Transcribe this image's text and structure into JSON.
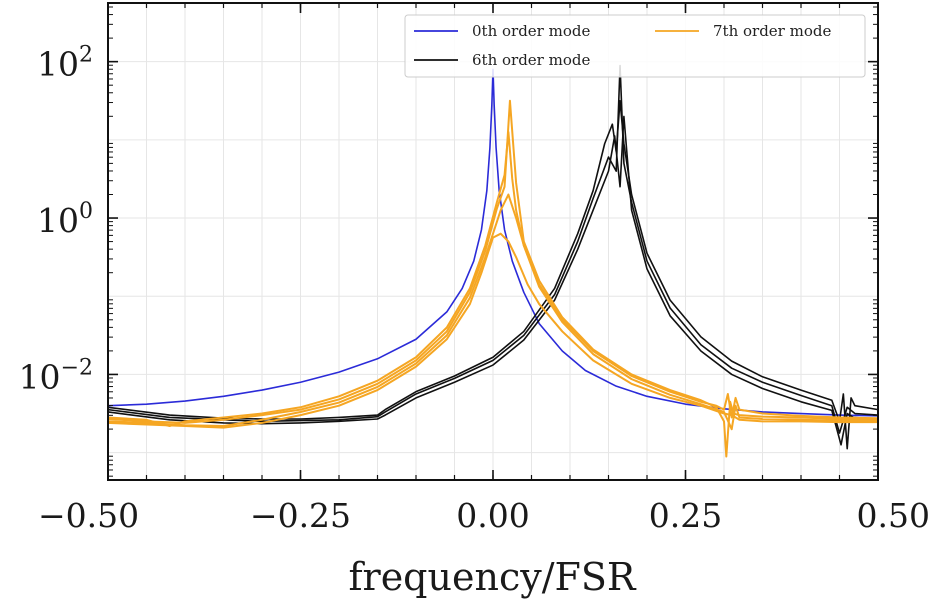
{
  "chart_data": {
    "type": "line",
    "title": "",
    "xlabel": "frequency/FSR",
    "ylabel": "",
    "xlim": [
      -0.5,
      0.5
    ],
    "ylim_log10": [
      -3.35,
      2.75
    ],
    "yscale": "log",
    "grid": true,
    "legend_placement": "top-right",
    "x_ticks": [
      {
        "value": -0.5,
        "label": "−0.50"
      },
      {
        "value": -0.25,
        "label": "−0.25"
      },
      {
        "value": 0.0,
        "label": "0.00"
      },
      {
        "value": 0.25,
        "label": "0.25"
      },
      {
        "value": 0.5,
        "label": "0.50"
      }
    ],
    "y_ticks": [
      {
        "exp": 2,
        "base": "10",
        "sup": "2"
      },
      {
        "exp": 0,
        "base": "10",
        "sup": "0"
      },
      {
        "exp": -2,
        "base": "10",
        "sup": "−2"
      }
    ],
    "series": [
      {
        "name": "0th order mode",
        "color": "#2b2bd8",
        "lines": [
          {
            "x": [
              -0.5,
              -0.45,
              -0.4,
              -0.35,
              -0.3,
              -0.25,
              -0.2,
              -0.15,
              -0.1,
              -0.06,
              -0.04,
              -0.025,
              -0.015,
              -0.008,
              -0.004,
              -0.0015,
              0.0,
              0.0015,
              0.004,
              0.008,
              0.015,
              0.025,
              0.04,
              0.06,
              0.09,
              0.12,
              0.16,
              0.2,
              0.25,
              0.3,
              0.35,
              0.4,
              0.45,
              0.5
            ],
            "y": [
              -2.4,
              -2.38,
              -2.34,
              -2.28,
              -2.2,
              -2.1,
              -1.97,
              -1.8,
              -1.55,
              -1.2,
              -0.9,
              -0.55,
              -0.15,
              0.35,
              0.9,
              1.45,
              1.9,
              1.45,
              0.9,
              0.35,
              -0.15,
              -0.55,
              -0.95,
              -1.35,
              -1.7,
              -1.95,
              -2.15,
              -2.28,
              -2.38,
              -2.44,
              -2.48,
              -2.5,
              -2.52,
              -2.53
            ]
          }
        ]
      },
      {
        "name": "6th order mode",
        "color": "#111111",
        "lines": [
          {
            "x": [
              -0.5,
              -0.42,
              -0.35,
              -0.3,
              -0.25,
              -0.2,
              -0.15,
              -0.14,
              -0.1,
              -0.05,
              0.0,
              0.04,
              0.08,
              0.11,
              0.13,
              0.145,
              0.155,
              0.16,
              0.165,
              0.17,
              0.18,
              0.2,
              0.23,
              0.27,
              0.31,
              0.35,
              0.4,
              0.44,
              0.45,
              0.455,
              0.46,
              0.465,
              0.47,
              0.5
            ],
            "y": [
              -2.42,
              -2.52,
              -2.56,
              -2.57,
              -2.57,
              -2.55,
              -2.52,
              -2.45,
              -2.22,
              -2.02,
              -1.78,
              -1.45,
              -0.9,
              -0.2,
              0.35,
              0.95,
              1.2,
              0.85,
              1.5,
              0.95,
              0.3,
              -0.45,
              -1.05,
              -1.52,
              -1.83,
              -2.03,
              -2.2,
              -2.33,
              -2.6,
              -2.25,
              -2.95,
              -2.3,
              -2.4,
              -2.45
            ]
          },
          {
            "x": [
              -0.5,
              -0.42,
              -0.35,
              -0.3,
              -0.25,
              -0.2,
              -0.15,
              -0.14,
              -0.1,
              -0.05,
              0.0,
              0.04,
              0.08,
              0.11,
              0.13,
              0.15,
              0.16,
              0.165,
              0.17,
              0.18,
              0.2,
              0.23,
              0.27,
              0.31,
              0.35,
              0.4,
              0.44,
              0.45,
              0.46,
              0.47,
              0.5
            ],
            "y": [
              -2.45,
              -2.55,
              -2.58,
              -2.6,
              -2.59,
              -2.58,
              -2.54,
              -2.48,
              -2.25,
              -2.05,
              -1.82,
              -1.5,
              -0.98,
              -0.3,
              0.25,
              0.78,
              0.6,
              1.95,
              0.7,
              0.2,
              -0.55,
              -1.15,
              -1.62,
              -1.92,
              -2.1,
              -2.27,
              -2.4,
              -2.75,
              -2.42,
              -2.5,
              -2.52
            ]
          },
          {
            "x": [
              -0.5,
              -0.42,
              -0.35,
              -0.3,
              -0.25,
              -0.2,
              -0.15,
              -0.14,
              -0.1,
              -0.05,
              0.0,
              0.04,
              0.08,
              0.11,
              0.13,
              0.15,
              0.158,
              0.165,
              0.17,
              0.18,
              0.2,
              0.23,
              0.27,
              0.31,
              0.35,
              0.4,
              0.44,
              0.452,
              0.46,
              0.468,
              0.5
            ],
            "y": [
              -2.48,
              -2.58,
              -2.62,
              -2.63,
              -2.62,
              -2.6,
              -2.57,
              -2.52,
              -2.3,
              -2.1,
              -1.88,
              -1.56,
              -1.05,
              -0.4,
              0.1,
              0.6,
              1.05,
              0.4,
              1.3,
              0.1,
              -0.65,
              -1.25,
              -1.7,
              -2.0,
              -2.18,
              -2.35,
              -2.46,
              -2.9,
              -2.5,
              -2.55,
              -2.57
            ]
          }
        ]
      },
      {
        "name": "7th order mode",
        "color": "#f5a623",
        "lines": [
          {
            "x": [
              -0.5,
              -0.45,
              -0.42,
              -0.4,
              -0.35,
              -0.3,
              -0.25,
              -0.2,
              -0.15,
              -0.1,
              -0.06,
              -0.03,
              -0.01,
              0.005,
              0.015,
              0.02,
              0.025,
              0.03,
              0.04,
              0.06,
              0.09,
              0.13,
              0.18,
              0.23,
              0.27,
              0.29,
              0.3,
              0.305,
              0.31,
              0.315,
              0.32,
              0.35,
              0.4,
              0.45,
              0.5
            ],
            "y": [
              -2.55,
              -2.58,
              -2.66,
              -2.6,
              -2.55,
              -2.5,
              -2.42,
              -2.28,
              -2.08,
              -1.78,
              -1.4,
              -0.9,
              -0.35,
              0.2,
              0.55,
              1.1,
              0.5,
              0.1,
              -0.35,
              -0.85,
              -1.3,
              -1.7,
              -2.02,
              -2.22,
              -2.35,
              -2.4,
              -2.45,
              -2.25,
              -2.55,
              -2.3,
              -2.45,
              -2.5,
              -2.53,
              -2.55,
              -2.56
            ]
          },
          {
            "x": [
              -0.5,
              -0.45,
              -0.4,
              -0.35,
              -0.3,
              -0.25,
              -0.2,
              -0.15,
              -0.1,
              -0.06,
              -0.03,
              -0.01,
              0.005,
              0.015,
              0.022,
              0.03,
              0.04,
              0.06,
              0.09,
              0.13,
              0.18,
              0.23,
              0.27,
              0.29,
              0.3,
              0.303,
              0.308,
              0.312,
              0.32,
              0.35,
              0.4,
              0.45,
              0.5
            ],
            "y": [
              -2.57,
              -2.6,
              -2.62,
              -2.58,
              -2.52,
              -2.45,
              -2.32,
              -2.12,
              -1.82,
              -1.45,
              -0.95,
              -0.42,
              0.12,
              0.4,
              1.5,
              0.45,
              -0.3,
              -0.8,
              -1.27,
              -1.68,
              -2.0,
              -2.2,
              -2.33,
              -2.42,
              -2.6,
              -3.05,
              -2.35,
              -2.5,
              -2.52,
              -2.54,
              -2.55,
              -2.57,
              -2.57
            ]
          },
          {
            "x": [
              -0.5,
              -0.45,
              -0.4,
              -0.35,
              -0.3,
              -0.25,
              -0.2,
              -0.15,
              -0.1,
              -0.06,
              -0.03,
              -0.01,
              0.0,
              0.01,
              0.02,
              0.03,
              0.04,
              0.06,
              0.09,
              0.13,
              0.18,
              0.23,
              0.27,
              0.3,
              0.31,
              0.315,
              0.32,
              0.35,
              0.4,
              0.45,
              0.5
            ],
            "y": [
              -2.6,
              -2.62,
              -2.65,
              -2.66,
              -2.58,
              -2.48,
              -2.36,
              -2.16,
              -1.86,
              -1.5,
              -1.02,
              -0.5,
              -0.2,
              0.1,
              0.3,
              0.0,
              -0.35,
              -0.88,
              -1.33,
              -1.74,
              -2.06,
              -2.26,
              -2.38,
              -2.48,
              -2.7,
              -2.4,
              -2.55,
              -2.57,
              -2.58,
              -2.59,
              -2.59
            ]
          },
          {
            "x": [
              -0.5,
              -0.45,
              -0.4,
              -0.35,
              -0.3,
              -0.25,
              -0.2,
              -0.15,
              -0.1,
              -0.06,
              -0.03,
              -0.015,
              0.0,
              0.01,
              0.02,
              0.03,
              0.045,
              0.06,
              0.09,
              0.13,
              0.18,
              0.23,
              0.27,
              0.3,
              0.31,
              0.32,
              0.35,
              0.4,
              0.45,
              0.5
            ],
            "y": [
              -2.62,
              -2.64,
              -2.66,
              -2.68,
              -2.62,
              -2.52,
              -2.4,
              -2.2,
              -1.9,
              -1.55,
              -1.1,
              -0.7,
              -0.25,
              -0.2,
              -0.3,
              -0.5,
              -0.85,
              -1.1,
              -1.45,
              -1.82,
              -2.12,
              -2.3,
              -2.4,
              -2.5,
              -2.52,
              -2.58,
              -2.6,
              -2.6,
              -2.61,
              -2.61
            ]
          }
        ]
      }
    ]
  }
}
